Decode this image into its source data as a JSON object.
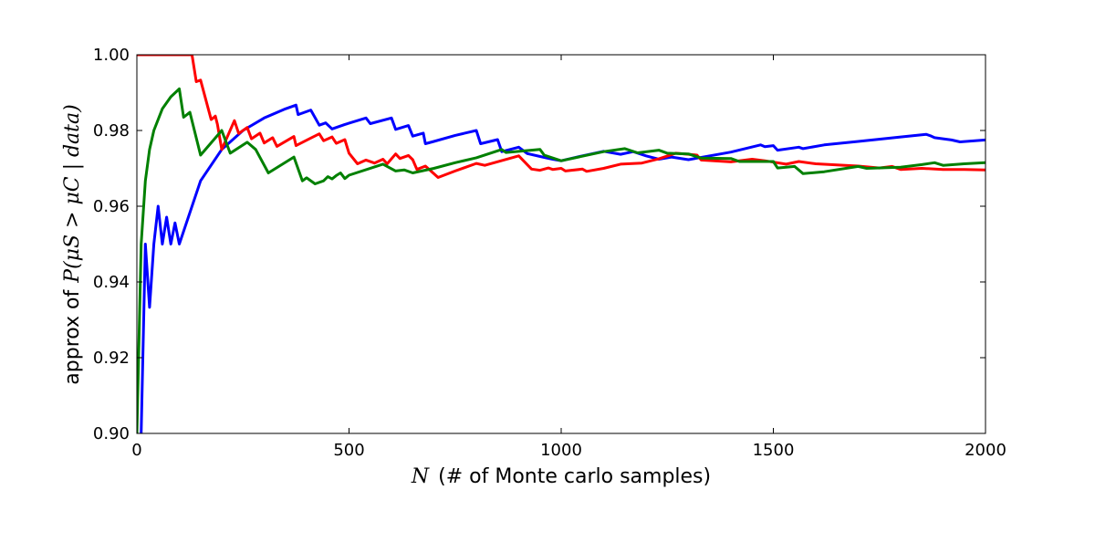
{
  "chart_data": {
    "type": "line",
    "xlabel_math": "N",
    "xlabel_text": "(# of Monte carlo samples)",
    "ylabel_text": "approx of",
    "ylabel_math": "P(μS > μC | data)",
    "xlim": [
      0,
      2000
    ],
    "ylim": [
      0.9,
      1.0
    ],
    "x_ticks": [
      0,
      500,
      1000,
      1500,
      2000
    ],
    "x_tick_labels": [
      "0",
      "500",
      "1000",
      "1500",
      "2000"
    ],
    "y_ticks": [
      0.9,
      0.92,
      0.94,
      0.96,
      0.98,
      1.0
    ],
    "y_tick_labels": [
      "0.90",
      "0.92",
      "0.94",
      "0.96",
      "0.98",
      "1.00"
    ],
    "grid": false,
    "series": [
      {
        "color": "#0000ff",
        "points": [
          [
            10,
            0.9
          ],
          [
            20,
            0.95
          ],
          [
            30,
            0.9333
          ],
          [
            40,
            0.95
          ],
          [
            50,
            0.96
          ],
          [
            60,
            0.95
          ],
          [
            70,
            0.9571
          ],
          [
            80,
            0.95
          ],
          [
            90,
            0.9556
          ],
          [
            100,
            0.95
          ],
          [
            150,
            0.9667
          ],
          [
            200,
            0.975
          ],
          [
            250,
            0.98
          ],
          [
            300,
            0.9833
          ],
          [
            350,
            0.9857
          ],
          [
            375,
            0.9867
          ],
          [
            380,
            0.9842
          ],
          [
            410,
            0.9854
          ],
          [
            430,
            0.9814
          ],
          [
            445,
            0.982
          ],
          [
            460,
            0.9804
          ],
          [
            490,
            0.9816
          ],
          [
            540,
            0.9833
          ],
          [
            550,
            0.9818
          ],
          [
            600,
            0.9833
          ],
          [
            610,
            0.9803
          ],
          [
            640,
            0.9813
          ],
          [
            650,
            0.9785
          ],
          [
            675,
            0.9793
          ],
          [
            680,
            0.9765
          ],
          [
            700,
            0.9771
          ],
          [
            750,
            0.9787
          ],
          [
            800,
            0.98
          ],
          [
            810,
            0.9765
          ],
          [
            850,
            0.9776
          ],
          [
            860,
            0.9744
          ],
          [
            900,
            0.9756
          ],
          [
            920,
            0.9739
          ],
          [
            960,
            0.9729
          ],
          [
            980,
            0.9724
          ],
          [
            1000,
            0.972
          ],
          [
            1050,
            0.9733
          ],
          [
            1100,
            0.9745
          ],
          [
            1140,
            0.9737
          ],
          [
            1170,
            0.9744
          ],
          [
            1200,
            0.9733
          ],
          [
            1230,
            0.9724
          ],
          [
            1260,
            0.973
          ],
          [
            1300,
            0.9723
          ],
          [
            1400,
            0.9743
          ],
          [
            1470,
            0.9762
          ],
          [
            1480,
            0.9757
          ],
          [
            1500,
            0.976
          ],
          [
            1510,
            0.9748
          ],
          [
            1560,
            0.9756
          ],
          [
            1570,
            0.9752
          ],
          [
            1620,
            0.9762
          ],
          [
            1700,
            0.9771
          ],
          [
            1800,
            0.9783
          ],
          [
            1860,
            0.979
          ],
          [
            1870,
            0.9786
          ],
          [
            1880,
            0.9781
          ],
          [
            1920,
            0.9775
          ],
          [
            1940,
            0.977
          ],
          [
            2000,
            0.9775
          ]
        ]
      },
      {
        "color": "#ff0000",
        "points": [
          [
            0,
            1.0
          ],
          [
            130,
            1.0
          ],
          [
            140,
            0.9929
          ],
          [
            150,
            0.9933
          ],
          [
            175,
            0.9829
          ],
          [
            180,
            0.9833
          ],
          [
            185,
            0.9838
          ],
          [
            190,
            0.9816
          ],
          [
            200,
            0.975
          ],
          [
            230,
            0.9826
          ],
          [
            240,
            0.9792
          ],
          [
            260,
            0.9808
          ],
          [
            270,
            0.9778
          ],
          [
            290,
            0.9793
          ],
          [
            300,
            0.9767
          ],
          [
            320,
            0.9781
          ],
          [
            330,
            0.9758
          ],
          [
            370,
            0.9784
          ],
          [
            375,
            0.976
          ],
          [
            410,
            0.978
          ],
          [
            430,
            0.9791
          ],
          [
            440,
            0.9773
          ],
          [
            460,
            0.9783
          ],
          [
            470,
            0.9766
          ],
          [
            490,
            0.9776
          ],
          [
            500,
            0.974
          ],
          [
            520,
            0.9712
          ],
          [
            540,
            0.9722
          ],
          [
            560,
            0.9714
          ],
          [
            580,
            0.9724
          ],
          [
            590,
            0.9712
          ],
          [
            610,
            0.9738
          ],
          [
            620,
            0.9726
          ],
          [
            640,
            0.9734
          ],
          [
            650,
            0.9723
          ],
          [
            660,
            0.9697
          ],
          [
            680,
            0.9706
          ],
          [
            710,
            0.9676
          ],
          [
            750,
            0.9693
          ],
          [
            800,
            0.9713
          ],
          [
            820,
            0.9708
          ],
          [
            900,
            0.9733
          ],
          [
            930,
            0.9698
          ],
          [
            950,
            0.9695
          ],
          [
            970,
            0.9701
          ],
          [
            980,
            0.9697
          ],
          [
            1000,
            0.97
          ],
          [
            1010,
            0.9693
          ],
          [
            1050,
            0.9698
          ],
          [
            1060,
            0.9692
          ],
          [
            1100,
            0.97
          ],
          [
            1140,
            0.9711
          ],
          [
            1190,
            0.9714
          ],
          [
            1230,
            0.9725
          ],
          [
            1270,
            0.974
          ],
          [
            1320,
            0.9735
          ],
          [
            1330,
            0.9722
          ],
          [
            1400,
            0.9717
          ],
          [
            1450,
            0.9724
          ],
          [
            1480,
            0.972
          ],
          [
            1530,
            0.9711
          ],
          [
            1560,
            0.9718
          ],
          [
            1600,
            0.9712
          ],
          [
            1700,
            0.9706
          ],
          [
            1750,
            0.9701
          ],
          [
            1780,
            0.9705
          ],
          [
            1800,
            0.9697
          ],
          [
            1850,
            0.97
          ],
          [
            1900,
            0.9697
          ],
          [
            1950,
            0.9697
          ],
          [
            2000,
            0.9696
          ]
        ]
      },
      {
        "color": "#008000",
        "points": [
          [
            0,
            0.9
          ],
          [
            10,
            0.95
          ],
          [
            20,
            0.9667
          ],
          [
            30,
            0.975
          ],
          [
            40,
            0.98
          ],
          [
            60,
            0.9857
          ],
          [
            80,
            0.9889
          ],
          [
            100,
            0.991
          ],
          [
            110,
            0.9835
          ],
          [
            125,
            0.9848
          ],
          [
            150,
            0.9735
          ],
          [
            200,
            0.98
          ],
          [
            220,
            0.974
          ],
          [
            260,
            0.9769
          ],
          [
            280,
            0.975
          ],
          [
            310,
            0.9688
          ],
          [
            370,
            0.973
          ],
          [
            390,
            0.9667
          ],
          [
            400,
            0.9675
          ],
          [
            420,
            0.9659
          ],
          [
            440,
            0.9667
          ],
          [
            450,
            0.9678
          ],
          [
            460,
            0.9672
          ],
          [
            470,
            0.9681
          ],
          [
            480,
            0.9688
          ],
          [
            490,
            0.9673
          ],
          [
            500,
            0.9682
          ],
          [
            580,
            0.9711
          ],
          [
            610,
            0.9693
          ],
          [
            630,
            0.9696
          ],
          [
            650,
            0.9688
          ],
          [
            700,
            0.97
          ],
          [
            750,
            0.9715
          ],
          [
            800,
            0.9728
          ],
          [
            860,
            0.975
          ],
          [
            870,
            0.9742
          ],
          [
            950,
            0.975
          ],
          [
            960,
            0.9735
          ],
          [
            1000,
            0.972
          ],
          [
            1100,
            0.9744
          ],
          [
            1150,
            0.9752
          ],
          [
            1180,
            0.9741
          ],
          [
            1230,
            0.9748
          ],
          [
            1250,
            0.974
          ],
          [
            1300,
            0.9738
          ],
          [
            1330,
            0.9727
          ],
          [
            1400,
            0.9726
          ],
          [
            1420,
            0.9718
          ],
          [
            1500,
            0.9718
          ],
          [
            1510,
            0.9701
          ],
          [
            1550,
            0.9705
          ],
          [
            1570,
            0.9686
          ],
          [
            1620,
            0.9691
          ],
          [
            1700,
            0.9705
          ],
          [
            1720,
            0.97
          ],
          [
            1800,
            0.9703
          ],
          [
            1850,
            0.971
          ],
          [
            1880,
            0.9715
          ],
          [
            1900,
            0.9708
          ],
          [
            1950,
            0.9712
          ],
          [
            2000,
            0.9715
          ]
        ]
      }
    ]
  }
}
